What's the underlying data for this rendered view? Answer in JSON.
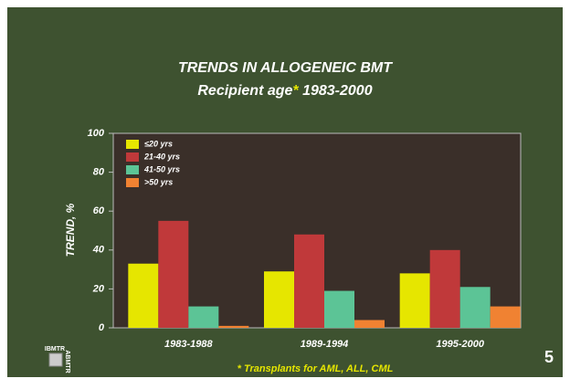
{
  "chart_data": {
    "type": "bar",
    "title": "TRENDS IN ALLOGENEIC BMT",
    "subtitle": "Recipient age* 1983-2000",
    "ylabel": "TREND, %",
    "categories": [
      "1983-1988",
      "1989-1994",
      "1995-2000"
    ],
    "series": [
      {
        "name": "≤20 yrs",
        "color": "#e6e600",
        "values": [
          33,
          29,
          28
        ]
      },
      {
        "name": "21-40 yrs",
        "color": "#c0393a",
        "values": [
          55,
          48,
          40
        ]
      },
      {
        "name": "41-50 yrs",
        "color": "#5cc496",
        "values": [
          11,
          19,
          21
        ]
      },
      {
        "name": ">50 yrs",
        "color": "#f08232",
        "values": [
          1,
          4,
          11
        ]
      }
    ],
    "ylim": [
      0,
      100
    ],
    "yticks": [
      0,
      20,
      40,
      60,
      80,
      100
    ],
    "legend": "upper-left",
    "footnote": "* Transplants for AML, ALL, CML",
    "slide_number": "5",
    "logo": [
      "IBMTR",
      "ABMTR"
    ]
  }
}
